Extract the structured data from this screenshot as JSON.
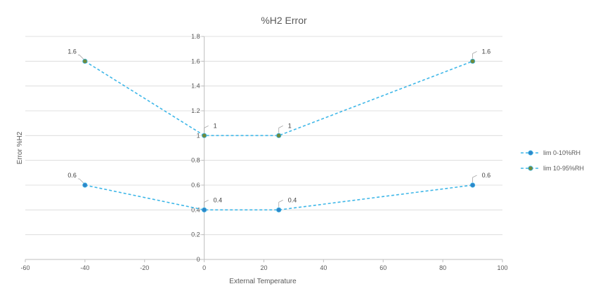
{
  "chart_data": {
    "type": "scatter",
    "title": "%H2 Error",
    "xlabel": "External Temperature",
    "ylabel": "Error %H2",
    "xlim": [
      -60,
      100
    ],
    "ylim": [
      0,
      1.8
    ],
    "xticks": [
      -60,
      -40,
      -20,
      0,
      20,
      40,
      60,
      80,
      100
    ],
    "yticks": [
      0,
      0.2,
      0.4,
      0.6,
      0.8,
      1,
      1.2,
      1.4,
      1.6,
      1.8
    ],
    "grid": "horizontal",
    "legend_position": "right",
    "series": [
      {
        "name": "lim 0-10%RH",
        "x": [
          -40,
          0,
          25,
          90
        ],
        "y": [
          0.6,
          0.4,
          0.4,
          0.6
        ],
        "labels": [
          "0.6",
          "0.4",
          "0.4",
          "0.6"
        ],
        "line_color": "#3FB7E8",
        "marker_color": "#2E86C8"
      },
      {
        "name": "lim 10-95%RH",
        "x": [
          -40,
          0,
          25,
          90
        ],
        "y": [
          1.6,
          1,
          1,
          1.6
        ],
        "labels": [
          "1.6",
          "1",
          "1",
          "1.6"
        ],
        "line_color": "#3FB7E8",
        "marker_color": "#6E8B3D"
      }
    ]
  }
}
